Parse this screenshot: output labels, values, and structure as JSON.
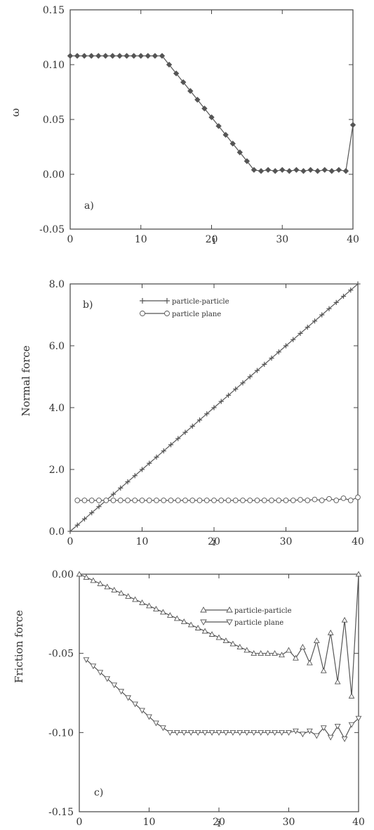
{
  "chart_data": [
    {
      "type": "line",
      "panel_label": "a)",
      "ylabel": "ω",
      "xlabel": "i",
      "xlim": [
        0,
        40
      ],
      "ylim": [
        -0.05,
        0.15
      ],
      "x_ticks": [
        "0",
        "10",
        "20",
        "30",
        "40"
      ],
      "y_ticks": [
        "-0.05",
        "0.00",
        "0.05",
        "0.10",
        "0.15"
      ],
      "x_tick_values": [
        0,
        10,
        20,
        30,
        40
      ],
      "y_tick_values": [
        -0.05,
        0.0,
        0.05,
        0.1,
        0.15
      ],
      "series": [
        {
          "marker": "filled-diamond",
          "x": [
            0,
            1,
            2,
            3,
            4,
            5,
            6,
            7,
            8,
            9,
            10,
            11,
            12,
            13,
            14,
            15,
            16,
            17,
            18,
            19,
            20,
            21,
            22,
            23,
            24,
            25,
            26,
            27,
            28,
            29,
            30,
            31,
            32,
            33,
            34,
            35,
            36,
            37,
            38,
            39,
            40
          ],
          "values": [
            0.108,
            0.108,
            0.108,
            0.108,
            0.108,
            0.108,
            0.108,
            0.108,
            0.108,
            0.108,
            0.108,
            0.108,
            0.108,
            0.108,
            0.1,
            0.092,
            0.084,
            0.076,
            0.068,
            0.06,
            0.052,
            0.044,
            0.036,
            0.028,
            0.02,
            0.012,
            0.004,
            0.003,
            0.004,
            0.003,
            0.004,
            0.003,
            0.004,
            0.003,
            0.004,
            0.003,
            0.004,
            0.003,
            0.004,
            0.003,
            0.045
          ]
        }
      ]
    },
    {
      "type": "line",
      "panel_label": "b)",
      "ylabel": "Normal force",
      "xlabel": "i",
      "xlim": [
        0,
        40
      ],
      "ylim": [
        0,
        8
      ],
      "x_ticks": [
        "0",
        "10",
        "20",
        "30",
        "40"
      ],
      "y_ticks": [
        "0.0",
        "2.0",
        "4.0",
        "6.0",
        "8.0"
      ],
      "x_tick_values": [
        0,
        10,
        20,
        30,
        40
      ],
      "y_tick_values": [
        0,
        2,
        4,
        6,
        8
      ],
      "legend": [
        "particle-particle",
        "particle plane"
      ],
      "series": [
        {
          "name": "particle-particle",
          "marker": "plus",
          "x": [
            0,
            1,
            2,
            3,
            4,
            5,
            6,
            7,
            8,
            9,
            10,
            11,
            12,
            13,
            14,
            15,
            16,
            17,
            18,
            19,
            20,
            21,
            22,
            23,
            24,
            25,
            26,
            27,
            28,
            29,
            30,
            31,
            32,
            33,
            34,
            35,
            36,
            37,
            38,
            39,
            40
          ],
          "values": [
            0,
            0.2,
            0.4,
            0.6,
            0.8,
            1.0,
            1.2,
            1.4,
            1.6,
            1.8,
            2.0,
            2.2,
            2.4,
            2.6,
            2.8,
            3.0,
            3.2,
            3.4,
            3.6,
            3.8,
            4.0,
            4.2,
            4.4,
            4.6,
            4.8,
            5.0,
            5.2,
            5.4,
            5.6,
            5.8,
            6.0,
            6.2,
            6.4,
            6.6,
            6.8,
            7.0,
            7.2,
            7.4,
            7.6,
            7.8,
            8.0
          ]
        },
        {
          "name": "particle plane",
          "marker": "open-circle",
          "x": [
            1,
            2,
            3,
            4,
            5,
            6,
            7,
            8,
            9,
            10,
            11,
            12,
            13,
            14,
            15,
            16,
            17,
            18,
            19,
            20,
            21,
            22,
            23,
            24,
            25,
            26,
            27,
            28,
            29,
            30,
            31,
            32,
            33,
            34,
            35,
            36,
            37,
            38,
            39,
            40
          ],
          "values": [
            1.0,
            1.0,
            1.0,
            1.0,
            1.0,
            1.0,
            1.0,
            1.0,
            1.0,
            1.0,
            1.0,
            1.0,
            1.0,
            1.0,
            1.0,
            1.0,
            1.0,
            1.0,
            1.0,
            1.0,
            1.0,
            1.0,
            1.0,
            1.0,
            1.0,
            1.0,
            1.0,
            1.0,
            1.0,
            1.0,
            1.0,
            1.02,
            1.0,
            1.03,
            1.0,
            1.05,
            1.0,
            1.07,
            1.0,
            1.1
          ]
        }
      ]
    },
    {
      "type": "line",
      "panel_label": "c)",
      "ylabel": "Friction force",
      "xlabel": "i",
      "xlim": [
        0,
        40
      ],
      "ylim": [
        -0.15,
        0.0
      ],
      "x_ticks": [
        "0",
        "10",
        "20",
        "30",
        "40"
      ],
      "y_ticks": [
        "0.00",
        "-0.05",
        "-0.10",
        "-0.15"
      ],
      "x_tick_values": [
        0,
        10,
        20,
        30,
        40
      ],
      "y_tick_values": [
        0.0,
        -0.05,
        -0.1,
        -0.15
      ],
      "legend": [
        "particle-particle",
        "particle plane"
      ],
      "series": [
        {
          "name": "particle-particle",
          "marker": "triangle-up",
          "x": [
            0,
            1,
            2,
            3,
            4,
            5,
            6,
            7,
            8,
            9,
            10,
            11,
            12,
            13,
            14,
            15,
            16,
            17,
            18,
            19,
            20,
            21,
            22,
            23,
            24,
            25,
            26,
            27,
            28,
            29,
            30,
            31,
            32,
            33,
            34,
            35,
            36,
            37,
            38,
            39,
            40
          ],
          "values": [
            0.0,
            -0.002,
            -0.004,
            -0.006,
            -0.008,
            -0.01,
            -0.012,
            -0.014,
            -0.016,
            -0.018,
            -0.02,
            -0.022,
            -0.024,
            -0.026,
            -0.028,
            -0.03,
            -0.032,
            -0.034,
            -0.036,
            -0.038,
            -0.04,
            -0.042,
            -0.044,
            -0.046,
            -0.048,
            -0.05,
            -0.05,
            -0.05,
            -0.05,
            -0.051,
            -0.048,
            -0.053,
            -0.046,
            -0.056,
            -0.042,
            -0.061,
            -0.037,
            -0.068,
            -0.029,
            -0.077,
            0.0
          ]
        },
        {
          "name": "particle plane",
          "marker": "triangle-down",
          "x": [
            1,
            2,
            3,
            4,
            5,
            6,
            7,
            8,
            9,
            10,
            11,
            12,
            13,
            14,
            15,
            16,
            17,
            18,
            19,
            20,
            21,
            22,
            23,
            24,
            25,
            26,
            27,
            28,
            29,
            30,
            31,
            32,
            33,
            34,
            35,
            36,
            37,
            38,
            39,
            40
          ],
          "values": [
            -0.054,
            -0.058,
            -0.062,
            -0.066,
            -0.07,
            -0.074,
            -0.078,
            -0.082,
            -0.086,
            -0.09,
            -0.094,
            -0.097,
            -0.1,
            -0.1,
            -0.1,
            -0.1,
            -0.1,
            -0.1,
            -0.1,
            -0.1,
            -0.1,
            -0.1,
            -0.1,
            -0.1,
            -0.1,
            -0.1,
            -0.1,
            -0.1,
            -0.1,
            -0.1,
            -0.099,
            -0.101,
            -0.099,
            -0.102,
            -0.097,
            -0.103,
            -0.096,
            -0.104,
            -0.095,
            -0.091
          ]
        }
      ]
    }
  ]
}
